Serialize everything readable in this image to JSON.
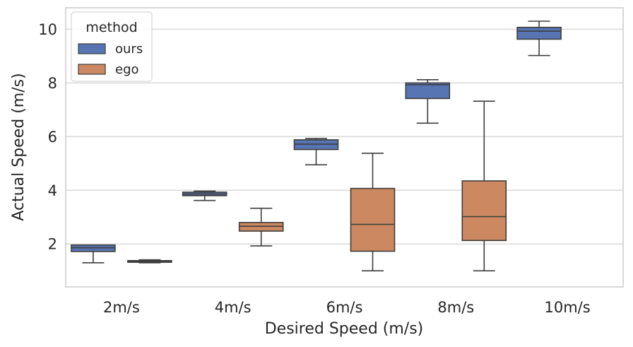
{
  "chart_data": {
    "type": "box",
    "title": "",
    "xlabel": "Desired Speed (m/s)",
    "ylabel": "Actual Speed (m/s)",
    "categories": [
      "2m/s",
      "4m/s",
      "6m/s",
      "8m/s",
      "10m/s"
    ],
    "ylim": [
      0.4,
      10.8
    ],
    "yticks": [
      2,
      4,
      6,
      8,
      10
    ],
    "grid": true,
    "legend": {
      "title": "method",
      "position": "top-left"
    },
    "colors": {
      "ours": "#5875b3",
      "ego": "#cc8860",
      "line": "#3d3d3d",
      "grid": "#d9d9d9",
      "frame": "#cccccc"
    },
    "series": [
      {
        "name": "ours",
        "boxes": [
          {
            "category": "2m/s",
            "whisker_low": 1.3,
            "q1": 1.72,
            "median": 1.86,
            "q3": 1.96,
            "whisker_high": 1.96
          },
          {
            "category": "4m/s",
            "whisker_low": 3.62,
            "q1": 3.8,
            "median": 3.86,
            "q3": 3.93,
            "whisker_high": 3.97
          },
          {
            "category": "6m/s",
            "whisker_low": 4.95,
            "q1": 5.52,
            "median": 5.72,
            "q3": 5.88,
            "whisker_high": 5.93
          },
          {
            "category": "8m/s",
            "whisker_low": 6.5,
            "q1": 7.42,
            "median": 7.93,
            "q3": 8.0,
            "whisker_high": 8.12
          },
          {
            "category": "10m/s",
            "whisker_low": 9.02,
            "q1": 9.63,
            "median": 9.93,
            "q3": 10.07,
            "whisker_high": 10.3
          }
        ]
      },
      {
        "name": "ego",
        "boxes": [
          {
            "category": "2m/s",
            "whisker_low": 1.3,
            "q1": 1.32,
            "median": 1.35,
            "q3": 1.38,
            "whisker_high": 1.41
          },
          {
            "category": "4m/s",
            "whisker_low": 1.93,
            "q1": 2.48,
            "median": 2.66,
            "q3": 2.8,
            "whisker_high": 3.33
          },
          {
            "category": "6m/s",
            "whisker_low": 1.0,
            "q1": 1.73,
            "median": 2.73,
            "q3": 4.07,
            "whisker_high": 5.38
          },
          {
            "category": "8m/s",
            "whisker_low": 1.0,
            "q1": 2.13,
            "median": 3.02,
            "q3": 4.35,
            "whisker_high": 7.32
          }
        ]
      }
    ]
  }
}
